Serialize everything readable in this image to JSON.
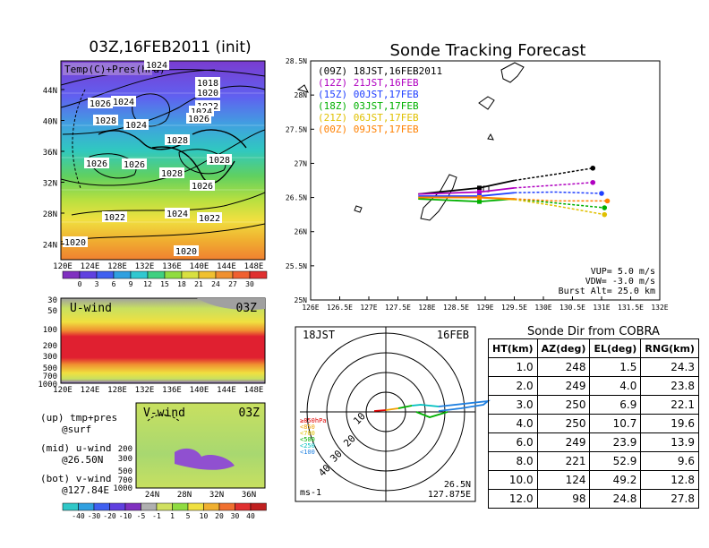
{
  "left_panel": {
    "title": "03Z,16FEB2011 (init)",
    "map_label": "Temp(C)+Pres(hPa)",
    "lat_ticks": [
      "44N",
      "40N",
      "36N",
      "32N",
      "28N",
      "24N"
    ],
    "lon_ticks": [
      "120E",
      "124E",
      "128E",
      "132E",
      "136E",
      "140E",
      "144E",
      "148E"
    ],
    "isobar_labels": [
      "1024",
      "1018",
      "1020",
      "1026",
      "1024",
      "1022",
      "1028",
      "1024",
      "1026",
      "1024",
      "1028",
      "1026",
      "1028",
      "1026",
      "1028",
      "1026",
      "1024",
      "1022",
      "1022",
      "1020",
      "1020"
    ],
    "temp_colorbar": [
      "0",
      "3",
      "6",
      "9",
      "12",
      "15",
      "18",
      "21",
      "24",
      "27",
      "30"
    ],
    "uwind": {
      "label": "U-wind",
      "time": "03Z",
      "p_ticks": [
        "30",
        "50",
        "100",
        "200",
        "300",
        "500",
        "700",
        "1000"
      ]
    },
    "vwind": {
      "label": "V-wind",
      "time": "03Z",
      "p_ticks": [
        "200",
        "300",
        "500",
        "700",
        "1000"
      ],
      "lat_ticks": [
        "24N",
        "28N",
        "32N",
        "36N"
      ]
    },
    "wind_colorbar": [
      "-40",
      "-30",
      "-20",
      "-10",
      "-5",
      "-1",
      "1",
      "5",
      "10",
      "20",
      "30",
      "40"
    ],
    "notes": [
      "(up) tmp+pres",
      "@surf",
      "(mid) u-wind",
      "@26.50N",
      "(bot) v-wind",
      "@127.84E"
    ]
  },
  "tracking": {
    "title": "Sonde Tracking Forecast",
    "lat_ticks": [
      "28.5N",
      "28N",
      "27.5N",
      "27N",
      "26.5N",
      "26N",
      "25.5N",
      "25N"
    ],
    "lon_ticks": [
      "126E",
      "126.5E",
      "127E",
      "127.5E",
      "128E",
      "128.5E",
      "129E",
      "129.5E",
      "130E",
      "130.5E",
      "131E",
      "131.5E",
      "132E"
    ],
    "info": [
      "VUP= 5.0 m/s",
      "VDW= -3.0 m/s",
      "Burst Alt= 25.0 km"
    ]
  },
  "compass": {
    "time": "18JST",
    "date": "16FEB",
    "ring_labels": [
      "10",
      "20",
      "30",
      "40"
    ],
    "legend": [
      "≥850hPa",
      "<850",
      "<700",
      "<500",
      "<250",
      "<100"
    ],
    "unit": "ms-1",
    "loc1": "26.5N",
    "loc2": "127.875E"
  },
  "table": {
    "title": "Sonde Dir from COBRA",
    "headers": [
      "HT(km)",
      "AZ(deg)",
      "EL(deg)",
      "RNG(km)"
    ],
    "rows": [
      [
        "1.0",
        "248",
        "1.5",
        "24.3"
      ],
      [
        "2.0",
        "249",
        "4.0",
        "23.8"
      ],
      [
        "3.0",
        "250",
        "6.9",
        "22.1"
      ],
      [
        "4.0",
        "250",
        "10.7",
        "19.6"
      ],
      [
        "6.0",
        "249",
        "23.9",
        "13.9"
      ],
      [
        "8.0",
        "221",
        "52.9",
        "9.6"
      ],
      [
        "10.0",
        "124",
        "49.2",
        "12.8"
      ],
      [
        "12.0",
        "98",
        "24.8",
        "27.8"
      ]
    ]
  },
  "chart_data": {
    "type": "line",
    "title": "Sonde Tracking Forecast",
    "xlim": [
      126,
      132
    ],
    "ylim": [
      25,
      28.5
    ],
    "series": [
      {
        "name": "(09Z) 18JST,16FEB2011",
        "color": "#000000",
        "x": [
          127.85,
          128.9,
          129.5,
          130.2,
          130.85
        ],
        "y": [
          26.55,
          26.64,
          26.75,
          26.84,
          26.93
        ]
      },
      {
        "name": "(12Z) 21JST,16FEB",
        "color": "#b000c0",
        "x": [
          127.85,
          128.9,
          129.5,
          130.2,
          130.85
        ],
        "y": [
          26.55,
          26.58,
          26.64,
          26.68,
          26.72
        ]
      },
      {
        "name": "(15Z) 00JST,17FEB",
        "color": "#2040ff",
        "x": [
          127.85,
          128.9,
          129.5,
          130.2,
          131.0
        ],
        "y": [
          26.52,
          26.52,
          26.57,
          26.58,
          26.56
        ]
      },
      {
        "name": "(18Z) 03JST,17FEB",
        "color": "#00b000",
        "x": [
          127.85,
          128.9,
          129.5,
          130.2,
          131.05
        ],
        "y": [
          26.48,
          26.44,
          26.48,
          26.42,
          26.35
        ]
      },
      {
        "name": "(21Z) 06JST,17FEB",
        "color": "#e0c000",
        "x": [
          127.85,
          128.9,
          129.5,
          130.2,
          131.05
        ],
        "y": [
          26.5,
          26.5,
          26.47,
          26.38,
          26.25
        ]
      },
      {
        "name": "(00Z) 09JST,17FEB",
        "color": "#ff8000",
        "x": [
          127.85,
          128.9,
          129.5,
          130.2,
          131.1
        ],
        "y": [
          26.5,
          26.5,
          26.48,
          26.45,
          26.45
        ]
      }
    ],
    "info": [
      "VUP= 5.0 m/s",
      "VDW= -3.0 m/s",
      "Burst Alt= 25.0 km"
    ]
  }
}
